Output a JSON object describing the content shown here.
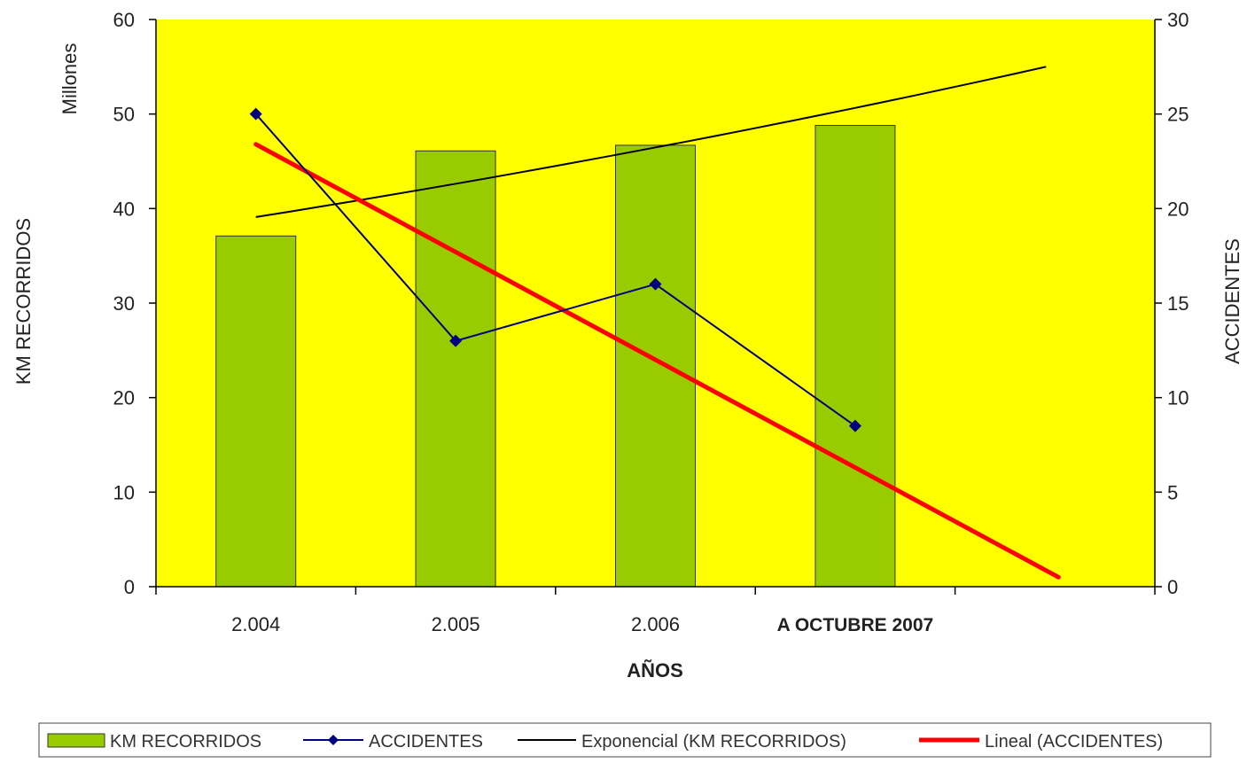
{
  "chart_data": {
    "type": "bar",
    "categories": [
      "2.004",
      "2.005",
      "2.006",
      "A OCTUBRE 2007"
    ],
    "xlabel": "AÑOS",
    "ylabel": "KM RECORRIDOS",
    "ylabel_units": "Millones",
    "y2label": "ACCIDENTES",
    "ylim": [
      0,
      60
    ],
    "y2lim": [
      0,
      30
    ],
    "yticks": [
      0,
      10,
      20,
      30,
      40,
      50,
      60
    ],
    "y2ticks": [
      0,
      5,
      10,
      15,
      20,
      25,
      30
    ],
    "plot_background": "#ffff00",
    "series": [
      {
        "name": "KM RECORRIDOS",
        "type": "bar",
        "axis": "left",
        "values": [
          37.1,
          46.1,
          46.7,
          48.8
        ],
        "color": "#99cc00"
      },
      {
        "name": "ACCIDENTES",
        "type": "line",
        "axis": "right",
        "marker": "diamond",
        "values": [
          25,
          13,
          16,
          8.5
        ],
        "color": "#000080"
      }
    ],
    "trendlines": [
      {
        "name": "Exponencial (KM RECORRIDOS)",
        "type": "exponential",
        "axis": "left",
        "start": 39.1,
        "end": 55,
        "extends_past_last_category": true,
        "color": "#000000"
      },
      {
        "name": "Lineal (ACCIDENTES)",
        "type": "linear",
        "axis": "right",
        "start": 23.4,
        "end": 0.5,
        "extends_past_last_category": true,
        "color": "#ff0000"
      }
    ],
    "legend_position": "bottom",
    "grid": false
  }
}
